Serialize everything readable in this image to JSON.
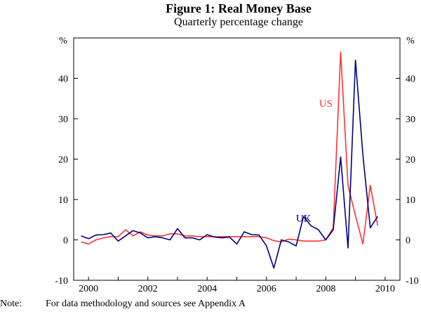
{
  "title": "Figure 1: Real Money Base",
  "subtitle": "Quarterly percentage change",
  "note_label": "Note:",
  "note_text": "For data methodology and sources see Appendix A",
  "chart_data": {
    "type": "line",
    "title": "Figure 1: Real Money Base",
    "subtitle": "Quarterly percentage change",
    "y_unit": "%",
    "ylim": [
      -10,
      50
    ],
    "yticks": [
      -10,
      0,
      10,
      20,
      30,
      40
    ],
    "xlim": [
      1999.5,
      2010.5
    ],
    "xticks": [
      2000,
      2002,
      2004,
      2006,
      2008,
      2010
    ],
    "grid": false,
    "series": [
      {
        "name": "US",
        "color": "#ff3333",
        "points": [
          [
            1999.75,
            -0.5
          ],
          [
            2000,
            -1
          ],
          [
            2000.25,
            0
          ],
          [
            2000.5,
            0.5
          ],
          [
            2000.75,
            0.8
          ],
          [
            2001,
            0.8
          ],
          [
            2001.25,
            2.5
          ],
          [
            2001.5,
            1
          ],
          [
            2001.75,
            2
          ],
          [
            2002,
            1.2
          ],
          [
            2002.25,
            1
          ],
          [
            2002.5,
            1
          ],
          [
            2002.75,
            1.5
          ],
          [
            2003,
            1.5
          ],
          [
            2003.25,
            1
          ],
          [
            2003.5,
            1
          ],
          [
            2003.75,
            0.8
          ],
          [
            2004,
            0.8
          ],
          [
            2004.25,
            0.8
          ],
          [
            2004.5,
            0.8
          ],
          [
            2004.75,
            0.8
          ],
          [
            2005,
            0.8
          ],
          [
            2005.25,
            0.8
          ],
          [
            2005.5,
            0.8
          ],
          [
            2005.75,
            0.8
          ],
          [
            2006,
            0.5
          ],
          [
            2006.25,
            -0.2
          ],
          [
            2006.5,
            -0.5
          ],
          [
            2006.75,
            0.2
          ],
          [
            2007,
            0
          ],
          [
            2007.25,
            -0.3
          ],
          [
            2007.5,
            -0.3
          ],
          [
            2007.75,
            -0.3
          ],
          [
            2008,
            0
          ],
          [
            2008.25,
            3
          ],
          [
            2008.5,
            46.5
          ],
          [
            2008.75,
            13.5
          ],
          [
            2009,
            6
          ],
          [
            2009.25,
            -1
          ],
          [
            2009.5,
            13.5
          ],
          [
            2009.75,
            3.5
          ]
        ]
      },
      {
        "name": "UK",
        "color": "#000080",
        "points": [
          [
            1999.75,
            1
          ],
          [
            2000,
            0.3
          ],
          [
            2000.25,
            1.2
          ],
          [
            2000.5,
            1.3
          ],
          [
            2000.75,
            1.7
          ],
          [
            2001,
            -0.3
          ],
          [
            2001.25,
            1
          ],
          [
            2001.5,
            2.3
          ],
          [
            2001.75,
            1.7
          ],
          [
            2002,
            0.5
          ],
          [
            2002.25,
            0.8
          ],
          [
            2002.5,
            0.5
          ],
          [
            2002.75,
            0
          ],
          [
            2003,
            2.8
          ],
          [
            2003.25,
            0.5
          ],
          [
            2003.5,
            0.5
          ],
          [
            2003.75,
            0
          ],
          [
            2004,
            1.3
          ],
          [
            2004.25,
            0.7
          ],
          [
            2004.5,
            0.5
          ],
          [
            2004.75,
            0.7
          ],
          [
            2005,
            -1
          ],
          [
            2005.25,
            2
          ],
          [
            2005.5,
            1.3
          ],
          [
            2005.75,
            1.2
          ],
          [
            2006,
            -1.5
          ],
          [
            2006.25,
            -7
          ],
          [
            2006.5,
            0
          ],
          [
            2006.75,
            -0.5
          ],
          [
            2007,
            -1.5
          ],
          [
            2007.25,
            5.8
          ],
          [
            2007.5,
            3.5
          ],
          [
            2007.75,
            2.5
          ],
          [
            2008,
            0
          ],
          [
            2008.25,
            2.5
          ],
          [
            2008.5,
            20.5
          ],
          [
            2008.75,
            -2
          ],
          [
            2009,
            44.5
          ],
          [
            2009.25,
            21
          ],
          [
            2009.5,
            3
          ],
          [
            2009.75,
            5.8
          ]
        ]
      }
    ],
    "annotations": [
      {
        "text": "US",
        "series": "US",
        "at": [
          2008,
          33
        ],
        "color": "#ff3333"
      },
      {
        "text": "UK",
        "series": "UK",
        "at": [
          2007.25,
          4.5
        ],
        "color": "#000080"
      }
    ]
  }
}
